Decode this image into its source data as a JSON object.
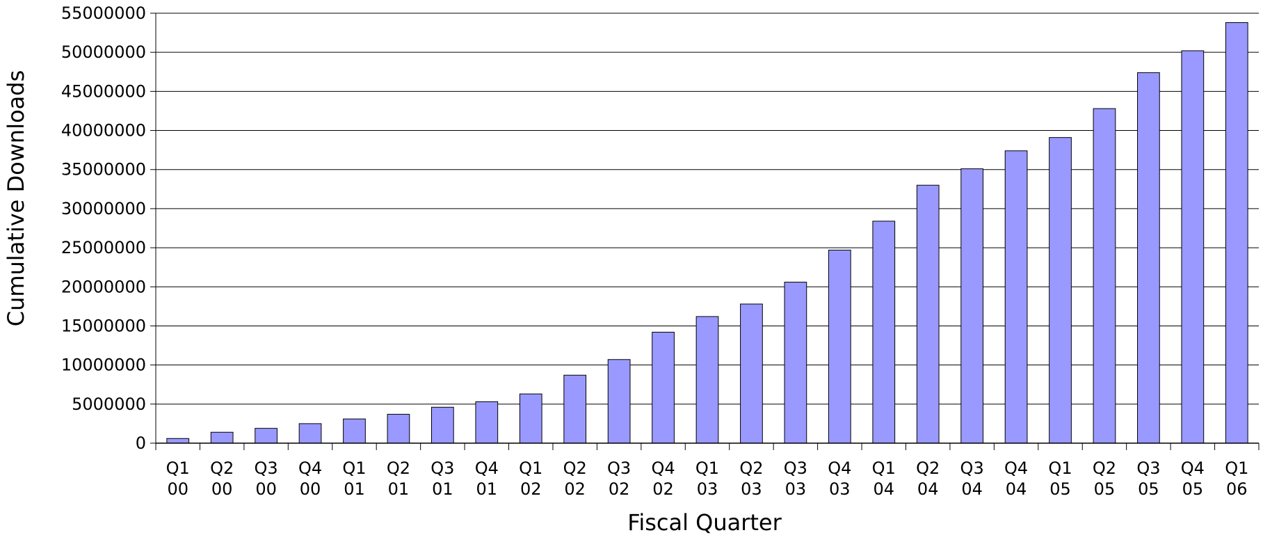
{
  "chart_data": {
    "type": "bar",
    "title": "",
    "xlabel": "Fiscal Quarter",
    "ylabel": "Cumulative Downloads",
    "ylim": [
      0,
      55000000
    ],
    "yticks": [
      0,
      5000000,
      10000000,
      15000000,
      20000000,
      25000000,
      30000000,
      35000000,
      40000000,
      45000000,
      50000000,
      55000000
    ],
    "grid": true,
    "legend": "none",
    "bar_color": "#9999ff",
    "bar_edge_color": "#000000",
    "categories": [
      "Q1 00",
      "Q2 00",
      "Q3 00",
      "Q4 00",
      "Q1 01",
      "Q2 01",
      "Q3 01",
      "Q4 01",
      "Q1 02",
      "Q2 02",
      "Q3 02",
      "Q4 02",
      "Q1 03",
      "Q2 03",
      "Q3 03",
      "Q4 03",
      "Q1 04",
      "Q2 04",
      "Q3 04",
      "Q4 04",
      "Q1 05",
      "Q2 05",
      "Q3 05",
      "Q4 05",
      "Q1 06"
    ],
    "values": [
      600000,
      1400000,
      1900000,
      2500000,
      3100000,
      3700000,
      4600000,
      5300000,
      6300000,
      8700000,
      10700000,
      14200000,
      16200000,
      17800000,
      20600000,
      24700000,
      28400000,
      33000000,
      35100000,
      37400000,
      39100000,
      42800000,
      47400000,
      50200000,
      53800000
    ]
  }
}
